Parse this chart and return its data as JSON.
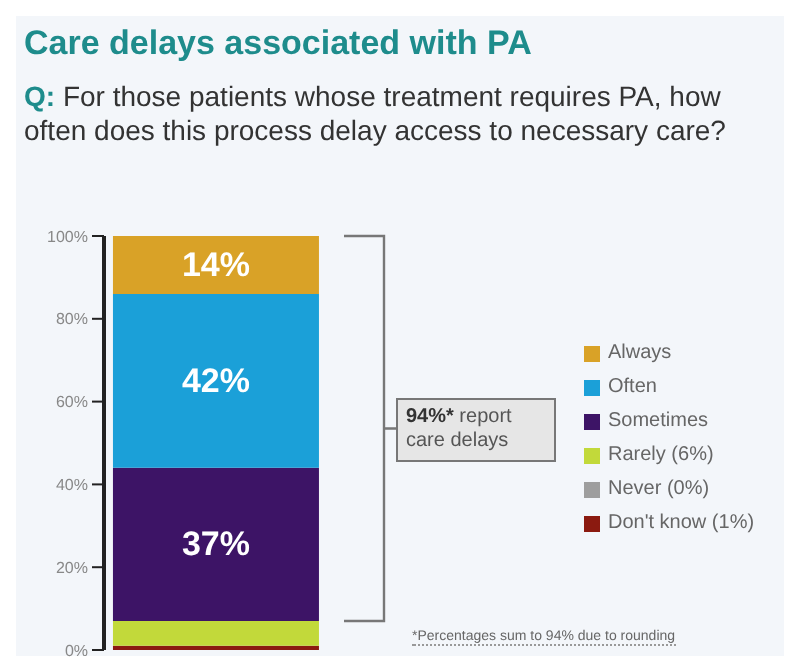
{
  "chart_data": {
    "type": "bar",
    "stacked": true,
    "title": "Care delays associated with PA",
    "subtitle": "Q: For those patients whose treatment requires PA, how often does this process delay access to necessary care?",
    "categories": [
      null
    ],
    "series": [
      {
        "name": "Don't know (1%)",
        "color": "#8b1a10",
        "values": [
          1
        ],
        "value_labels": [
          null
        ]
      },
      {
        "name": "Never (0%)",
        "color": "#9e9e9e",
        "values": [
          0
        ],
        "value_labels": [
          null
        ]
      },
      {
        "name": "Rarely (6%)",
        "color": "#c2d93a",
        "values": [
          6
        ],
        "value_labels": [
          null
        ]
      },
      {
        "name": "Sometimes",
        "color": "#3d1466",
        "values": [
          37
        ],
        "value_labels": [
          "37%"
        ]
      },
      {
        "name": "Often",
        "color": "#1ba0d8",
        "values": [
          42
        ],
        "value_labels": [
          "42%"
        ]
      },
      {
        "name": "Always",
        "color": "#d9a227",
        "values": [
          14
        ],
        "value_labels": [
          "14%"
        ]
      }
    ],
    "ylim": [
      0,
      100
    ],
    "yticks": [
      {
        "value": 0,
        "label": "0%"
      },
      {
        "value": 20,
        "label": "20%"
      },
      {
        "value": 40,
        "label": "40%"
      },
      {
        "value": 60,
        "label": "60%"
      },
      {
        "value": 80,
        "label": "80%"
      },
      {
        "value": 100,
        "label": "100%"
      }
    ],
    "grid": false,
    "legend": "right",
    "annotations": [
      "94%* report care delays",
      "*Percentages sum to 94% due to rounding"
    ]
  }
}
